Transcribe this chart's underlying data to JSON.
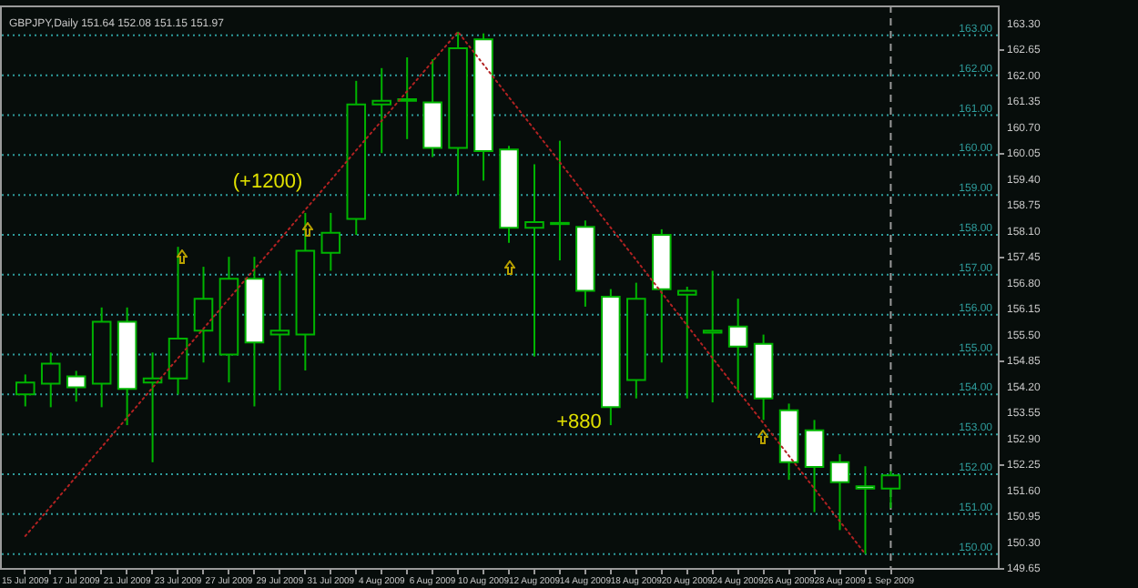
{
  "chart_data": {
    "type": "candlestick",
    "title": "GBPJPY,Daily  151.64 152.08 151.15 151.97",
    "categories": [
      "15 Jul 2009",
      null,
      "17 Jul 2009",
      null,
      "21 Jul 2009",
      null,
      "23 Jul 2009",
      null,
      "27 Jul 2009",
      null,
      "29 Jul 2009",
      null,
      "31 Jul 2009",
      null,
      "4 Aug 2009",
      null,
      "6 Aug 2009",
      null,
      "10 Aug 2009",
      null,
      "12 Aug 2009",
      null,
      "14 Aug 2009",
      null,
      "18 Aug 2009",
      null,
      "20 Aug 2009",
      null,
      "24 Aug 2009",
      null,
      "26 Aug 2009",
      null,
      "28 Aug 2009",
      null,
      "1 Sep 2009"
    ],
    "ohlc": [
      [
        154.0,
        154.5,
        153.7,
        154.3
      ],
      [
        154.27,
        155.05,
        153.68,
        154.77
      ],
      [
        154.45,
        154.59,
        153.82,
        154.18
      ],
      [
        154.27,
        156.18,
        153.68,
        155.82
      ],
      [
        155.82,
        156.18,
        153.23,
        154.14
      ],
      [
        154.3,
        155.05,
        152.3,
        154.4
      ],
      [
        154.4,
        157.7,
        154.0,
        155.4
      ],
      [
        155.6,
        157.2,
        154.8,
        156.4
      ],
      [
        155.0,
        157.45,
        154.3,
        156.9
      ],
      [
        156.9,
        157.45,
        153.7,
        155.3
      ],
      [
        155.5,
        157.1,
        154.1,
        155.6
      ],
      [
        155.5,
        158.55,
        154.6,
        157.6
      ],
      [
        157.55,
        158.55,
        157.1,
        158.05
      ],
      [
        158.4,
        161.86,
        158.0,
        161.27
      ],
      [
        161.27,
        162.18,
        160.05,
        161.36
      ],
      [
        161.36,
        162.45,
        160.4,
        161.4
      ],
      [
        161.32,
        162.4,
        159.95,
        160.18
      ],
      [
        160.18,
        163.09,
        159.0,
        162.68
      ],
      [
        162.9,
        163.05,
        159.36,
        160.1
      ],
      [
        160.14,
        160.23,
        157.8,
        158.18
      ],
      [
        158.18,
        159.77,
        154.95,
        158.32
      ],
      [
        158.3,
        160.36,
        157.36,
        158.27
      ],
      [
        158.2,
        158.36,
        156.2,
        156.6
      ],
      [
        156.45,
        156.64,
        153.23,
        153.68
      ],
      [
        154.36,
        156.8,
        153.9,
        156.4
      ],
      [
        158.0,
        158.14,
        154.8,
        156.64
      ],
      [
        156.5,
        156.7,
        153.9,
        156.6
      ],
      [
        155.55,
        157.1,
        153.8,
        155.6
      ],
      [
        155.7,
        156.4,
        154.1,
        155.2
      ],
      [
        155.27,
        155.5,
        153.36,
        153.9
      ],
      [
        153.6,
        153.77,
        151.86,
        152.3
      ],
      [
        153.1,
        153.36,
        151.05,
        152.18
      ],
      [
        152.3,
        152.5,
        150.6,
        151.8
      ],
      [
        151.7,
        152.2,
        150.0,
        151.64
      ],
      [
        151.64,
        152.08,
        151.15,
        151.97
      ]
    ],
    "series": [
      {
        "type": "line",
        "color": "#b22222",
        "line_style": "dotted",
        "values": [
          150.45,
          151.19,
          151.94,
          152.68,
          153.42,
          154.17,
          154.91,
          155.65,
          156.4,
          157.14,
          157.88,
          158.63,
          159.37,
          160.12,
          160.86,
          161.6,
          162.35,
          163.09,
          162.27,
          161.45,
          160.64,
          159.82,
          159.0,
          158.18,
          157.37,
          156.55,
          155.73,
          154.91,
          154.09,
          153.28,
          152.46,
          151.64,
          150.82,
          150.0,
          null
        ]
      }
    ],
    "ylim": [
      149.65,
      163.75
    ],
    "yticks": [
      {
        "value": 149.65,
        "label": "149.65"
      },
      {
        "value": 150.3,
        "label": "150.30"
      },
      {
        "value": 150.95,
        "label": "150.95"
      },
      {
        "value": 151.6,
        "label": "151.60"
      },
      {
        "value": 152.25,
        "label": "152.25"
      },
      {
        "value": 152.9,
        "label": "152.90"
      },
      {
        "value": 153.55,
        "label": "153.55"
      },
      {
        "value": 154.2,
        "label": "154.20"
      },
      {
        "value": 154.85,
        "label": "154.85"
      },
      {
        "value": 155.5,
        "label": "155.50"
      },
      {
        "value": 156.15,
        "label": "156.15"
      },
      {
        "value": 156.8,
        "label": "156.80"
      },
      {
        "value": 157.45,
        "label": "157.45"
      },
      {
        "value": 158.1,
        "label": "158.10"
      },
      {
        "value": 158.75,
        "label": "158.75"
      },
      {
        "value": 159.4,
        "label": "159.40"
      },
      {
        "value": 160.05,
        "label": "160.05"
      },
      {
        "value": 160.7,
        "label": "160.70"
      },
      {
        "value": 161.35,
        "label": "161.35"
      },
      {
        "value": 162.0,
        "label": "162.00"
      },
      {
        "value": 162.65,
        "label": "162.65"
      },
      {
        "value": 163.3,
        "label": "163.30"
      }
    ],
    "ref_lines": [
      {
        "axis": "y",
        "value": 150,
        "label": "150.00",
        "color": "#2e9c9c",
        "line_style": "dotted"
      },
      {
        "axis": "y",
        "value": 151,
        "label": "151.00",
        "color": "#2e9c9c",
        "line_style": "dotted"
      },
      {
        "axis": "y",
        "value": 152,
        "label": "152.00",
        "color": "#2e9c9c",
        "line_style": "dotted"
      },
      {
        "axis": "y",
        "value": 153,
        "label": "153.00",
        "color": "#2e9c9c",
        "line_style": "dotted"
      },
      {
        "axis": "y",
        "value": 154,
        "label": "154.00",
        "color": "#2e9c9c",
        "line_style": "dotted"
      },
      {
        "axis": "y",
        "value": 155,
        "label": "155.00",
        "color": "#2e9c9c",
        "line_style": "dotted"
      },
      {
        "axis": "y",
        "value": 156,
        "label": "156.00",
        "color": "#2e9c9c",
        "line_style": "dotted"
      },
      {
        "axis": "y",
        "value": 157,
        "label": "157.00",
        "color": "#2e9c9c",
        "line_style": "dotted"
      },
      {
        "axis": "y",
        "value": 158,
        "label": "158.00",
        "color": "#2e9c9c",
        "line_style": "dotted"
      },
      {
        "axis": "y",
        "value": 159,
        "label": "159.00",
        "color": "#2e9c9c",
        "line_style": "dotted"
      },
      {
        "axis": "y",
        "value": 160,
        "label": "160.00",
        "color": "#2e9c9c",
        "line_style": "dotted"
      },
      {
        "axis": "y",
        "value": 161,
        "label": "161.00",
        "color": "#2e9c9c",
        "line_style": "dotted"
      },
      {
        "axis": "y",
        "value": 162,
        "label": "162.00",
        "color": "#2e9c9c",
        "line_style": "dotted"
      },
      {
        "axis": "y",
        "value": 163,
        "label": "163.00",
        "color": "#2e9c9c",
        "line_style": "dotted"
      },
      {
        "axis": "x",
        "value": "1 Sep 2009",
        "color": "#9a9a9a",
        "line_style": "dashed"
      }
    ],
    "annotations": [
      "(+1200)",
      "+880"
    ],
    "grid": false
  }
}
